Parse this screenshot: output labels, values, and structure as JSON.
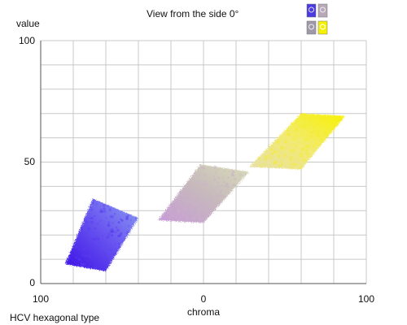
{
  "chart_data": {
    "type": "scatter",
    "title": "View from the side 0°",
    "xlabel": "chroma",
    "ylabel": "value",
    "footer": "HCV hexagonal type",
    "x_ticks": [
      "100",
      "0",
      "100"
    ],
    "y_ticks": [
      "100",
      "50",
      "0"
    ],
    "xlim": [
      -100,
      100
    ],
    "ylim": [
      0,
      100
    ],
    "grid": true,
    "legend": "none",
    "series": [
      {
        "color": "#5a3cf0",
        "values": [
          [
            -85,
            8
          ],
          [
            -60,
            5
          ],
          [
            -40,
            27
          ],
          [
            -68,
            35
          ]
        ]
      },
      {
        "color": "#c8b4c8",
        "values": [
          [
            -28,
            26
          ],
          [
            0,
            25
          ],
          [
            28,
            46
          ],
          [
            -2,
            49
          ]
        ]
      },
      {
        "color": "#f4ec2a",
        "values": [
          [
            28,
            48
          ],
          [
            60,
            47
          ],
          [
            87,
            69
          ],
          [
            60,
            70
          ]
        ]
      }
    ],
    "thumbnails": {
      "top_left_color": "#4a3ae0",
      "top_right_color": "#b8a8b8",
      "bottom_left_color": "#a098a8",
      "bottom_right_color": "#f4f000"
    }
  }
}
